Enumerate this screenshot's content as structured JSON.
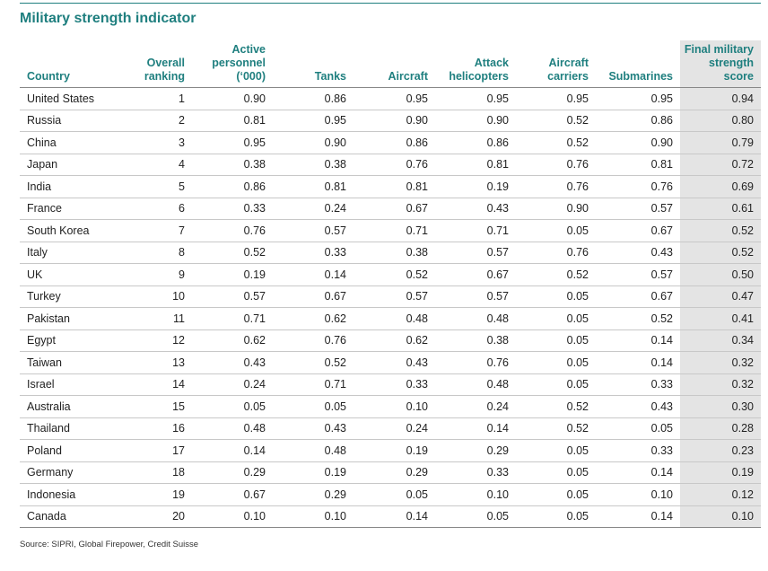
{
  "title": "Military strength indicator",
  "table": {
    "header": [
      "Country",
      "Overall\nranking",
      "Active\npersonnel\n(‘000)",
      "Tanks",
      "Aircraft",
      "Attack\nhelicopters",
      "Aircraft\ncarriers",
      "Submarines",
      "Final military\nstrength\nscore"
    ],
    "rows": [
      [
        "United States",
        "1",
        "0.90",
        "0.86",
        "0.95",
        "0.95",
        "0.95",
        "0.95",
        "0.94"
      ],
      [
        "Russia",
        "2",
        "0.81",
        "0.95",
        "0.90",
        "0.90",
        "0.52",
        "0.86",
        "0.80"
      ],
      [
        "China",
        "3",
        "0.95",
        "0.90",
        "0.86",
        "0.86",
        "0.52",
        "0.90",
        "0.79"
      ],
      [
        "Japan",
        "4",
        "0.38",
        "0.38",
        "0.76",
        "0.81",
        "0.76",
        "0.81",
        "0.72"
      ],
      [
        "India",
        "5",
        "0.86",
        "0.81",
        "0.81",
        "0.19",
        "0.76",
        "0.76",
        "0.69"
      ],
      [
        "France",
        "6",
        "0.33",
        "0.24",
        "0.67",
        "0.43",
        "0.90",
        "0.57",
        "0.61"
      ],
      [
        "South Korea",
        "7",
        "0.76",
        "0.57",
        "0.71",
        "0.71",
        "0.05",
        "0.67",
        "0.52"
      ],
      [
        "Italy",
        "8",
        "0.52",
        "0.33",
        "0.38",
        "0.57",
        "0.76",
        "0.43",
        "0.52"
      ],
      [
        "UK",
        "9",
        "0.19",
        "0.14",
        "0.52",
        "0.67",
        "0.52",
        "0.57",
        "0.50"
      ],
      [
        "Turkey",
        "10",
        "0.57",
        "0.67",
        "0.57",
        "0.57",
        "0.05",
        "0.67",
        "0.47"
      ],
      [
        "Pakistan",
        "11",
        "0.71",
        "0.62",
        "0.48",
        "0.48",
        "0.05",
        "0.52",
        "0.41"
      ],
      [
        "Egypt",
        "12",
        "0.62",
        "0.76",
        "0.62",
        "0.38",
        "0.05",
        "0.14",
        "0.34"
      ],
      [
        "Taiwan",
        "13",
        "0.43",
        "0.52",
        "0.43",
        "0.76",
        "0.05",
        "0.14",
        "0.32"
      ],
      [
        "Israel",
        "14",
        "0.24",
        "0.71",
        "0.33",
        "0.48",
        "0.05",
        "0.33",
        "0.32"
      ],
      [
        "Australia",
        "15",
        "0.05",
        "0.05",
        "0.10",
        "0.24",
        "0.52",
        "0.43",
        "0.30"
      ],
      [
        "Thailand",
        "16",
        "0.48",
        "0.43",
        "0.24",
        "0.14",
        "0.52",
        "0.05",
        "0.28"
      ],
      [
        "Poland",
        "17",
        "0.14",
        "0.48",
        "0.19",
        "0.29",
        "0.05",
        "0.33",
        "0.23"
      ],
      [
        "Germany",
        "18",
        "0.29",
        "0.19",
        "0.29",
        "0.33",
        "0.05",
        "0.14",
        "0.19"
      ],
      [
        "Indonesia",
        "19",
        "0.67",
        "0.29",
        "0.05",
        "0.10",
        "0.05",
        "0.10",
        "0.12"
      ],
      [
        "Canada",
        "20",
        "0.10",
        "0.10",
        "0.14",
        "0.05",
        "0.05",
        "0.14",
        "0.10"
      ]
    ]
  },
  "source": "Source: SIPRI, Global Firepower, Credit Suisse"
}
